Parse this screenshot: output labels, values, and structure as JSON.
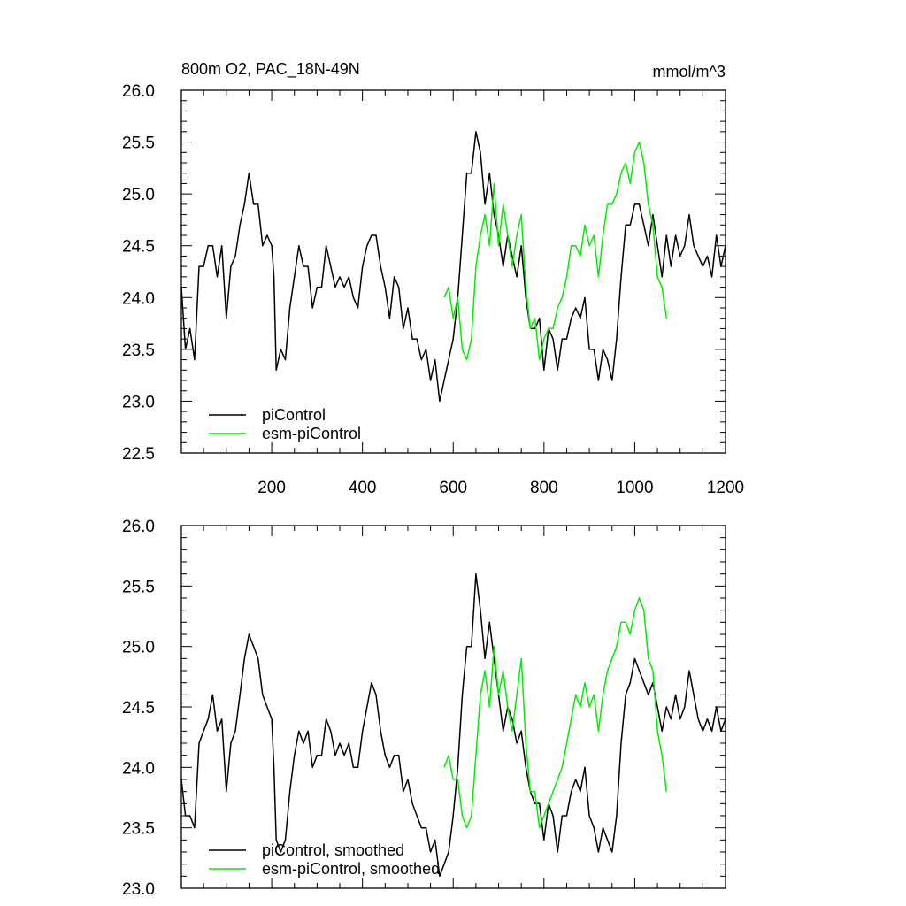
{
  "chart_data": [
    {
      "type": "line",
      "title": "800m O2, PAC_18N-49N",
      "units": "mmol/m^3",
      "xlim": [
        1,
        1200
      ],
      "ylim": [
        22.5,
        26.0
      ],
      "x_ticks": [
        200,
        400,
        600,
        800,
        1000,
        1200
      ],
      "x_ticklabels": [
        "200",
        "400",
        "600",
        "800",
        "1000",
        "1200"
      ],
      "y_ticks": [
        22.5,
        23.0,
        23.5,
        24.0,
        24.5,
        25.0,
        25.5,
        26.0
      ],
      "y_ticklabels": [
        "22.5",
        "23.0",
        "23.5",
        "24.0",
        "24.5",
        "25.0",
        "25.5",
        "26.0"
      ],
      "legend_position": "bottom-left",
      "grid": false,
      "series": [
        {
          "name": "piControl",
          "color": "#000000",
          "x": [
            1,
            10,
            20,
            30,
            40,
            50,
            60,
            70,
            80,
            90,
            100,
            110,
            120,
            130,
            140,
            150,
            160,
            170,
            180,
            190,
            200,
            205,
            210,
            220,
            230,
            240,
            250,
            260,
            270,
            280,
            290,
            300,
            310,
            320,
            330,
            340,
            350,
            360,
            370,
            380,
            390,
            400,
            410,
            420,
            430,
            440,
            450,
            460,
            470,
            480,
            490,
            500,
            510,
            520,
            530,
            540,
            550,
            560,
            570,
            580,
            590,
            600,
            610,
            620,
            630,
            640,
            650,
            660,
            670,
            680,
            690,
            700,
            710,
            720,
            730,
            740,
            750,
            760,
            770,
            780,
            790,
            800,
            810,
            820,
            830,
            840,
            850,
            860,
            870,
            880,
            890,
            900,
            910,
            920,
            930,
            940,
            950,
            960,
            970,
            980,
            990,
            1000,
            1010,
            1020,
            1030,
            1040,
            1050,
            1060,
            1070,
            1080,
            1090,
            1100,
            1110,
            1120,
            1130,
            1140,
            1150,
            1160,
            1170,
            1180,
            1190,
            1200
          ],
          "y": [
            24.1,
            23.5,
            23.7,
            23.4,
            24.3,
            24.3,
            24.5,
            24.5,
            24.2,
            24.5,
            23.8,
            24.3,
            24.4,
            24.7,
            24.9,
            25.2,
            24.9,
            24.9,
            24.5,
            24.6,
            24.5,
            24.2,
            23.3,
            23.5,
            23.4,
            23.9,
            24.2,
            24.5,
            24.3,
            24.3,
            23.9,
            24.1,
            24.1,
            24.5,
            24.3,
            24.1,
            24.2,
            24.1,
            24.2,
            24.0,
            23.9,
            24.3,
            24.5,
            24.6,
            24.6,
            24.3,
            24.1,
            23.8,
            24.2,
            24.1,
            23.7,
            23.9,
            23.6,
            23.6,
            23.4,
            23.5,
            23.2,
            23.4,
            23.0,
            23.2,
            23.4,
            23.6,
            24.0,
            24.6,
            25.2,
            25.2,
            25.6,
            25.4,
            24.9,
            25.2,
            24.8,
            24.6,
            24.3,
            24.6,
            24.4,
            24.2,
            24.5,
            24.0,
            23.7,
            23.7,
            23.8,
            23.3,
            23.7,
            23.6,
            23.3,
            23.6,
            23.6,
            23.8,
            23.9,
            23.8,
            24.0,
            23.5,
            23.5,
            23.2,
            23.5,
            23.4,
            23.2,
            23.6,
            24.2,
            24.7,
            24.7,
            24.9,
            24.9,
            24.7,
            24.5,
            24.8,
            24.5,
            24.2,
            24.6,
            24.3,
            24.6,
            24.4,
            24.5,
            24.8,
            24.5,
            24.4,
            24.3,
            24.4,
            24.2,
            24.6,
            24.3,
            24.5
          ]
        },
        {
          "name": "esm-piControl",
          "color": "#00ee00",
          "x": [
            580,
            590,
            600,
            610,
            620,
            630,
            640,
            650,
            660,
            670,
            680,
            690,
            700,
            710,
            720,
            730,
            740,
            750,
            760,
            770,
            780,
            790,
            800,
            810,
            820,
            830,
            840,
            850,
            860,
            870,
            880,
            890,
            900,
            910,
            920,
            930,
            940,
            950,
            960,
            970,
            980,
            990,
            1000,
            1010,
            1020,
            1030,
            1040,
            1050,
            1060,
            1070
          ],
          "y": [
            24.0,
            24.1,
            23.8,
            24.0,
            23.5,
            23.4,
            23.6,
            24.3,
            24.6,
            24.8,
            24.5,
            25.1,
            24.5,
            24.9,
            24.6,
            24.3,
            24.6,
            24.8,
            24.1,
            23.7,
            23.8,
            23.4,
            23.6,
            23.7,
            23.7,
            23.9,
            24.0,
            24.2,
            24.5,
            24.5,
            24.4,
            24.7,
            24.5,
            24.6,
            24.2,
            24.6,
            24.9,
            24.9,
            25.0,
            25.2,
            25.3,
            25.1,
            25.4,
            25.5,
            25.3,
            24.9,
            24.7,
            24.2,
            24.1,
            23.8
          ]
        }
      ]
    },
    {
      "type": "line",
      "title": "",
      "xlim": [
        1,
        1200
      ],
      "ylim": [
        23.0,
        26.0
      ],
      "x_ticks": [
        200,
        400,
        600,
        800,
        1000,
        1200
      ],
      "y_ticks": [
        23.0,
        23.5,
        24.0,
        24.5,
        25.0,
        25.5,
        26.0
      ],
      "y_ticklabels": [
        "23.0",
        "23.5",
        "24.0",
        "24.5",
        "25.0",
        "25.5",
        "26.0"
      ],
      "legend_position": "bottom-left",
      "grid": false,
      "series": [
        {
          "name": "piControl, smoothed",
          "color": "#000000",
          "x": [
            1,
            10,
            20,
            30,
            40,
            50,
            60,
            70,
            80,
            90,
            100,
            110,
            120,
            130,
            140,
            150,
            160,
            170,
            180,
            190,
            200,
            205,
            210,
            220,
            230,
            240,
            250,
            260,
            270,
            280,
            290,
            300,
            310,
            320,
            330,
            340,
            350,
            360,
            370,
            380,
            390,
            400,
            410,
            420,
            430,
            440,
            450,
            460,
            470,
            480,
            490,
            500,
            510,
            520,
            530,
            540,
            550,
            560,
            570,
            580,
            590,
            600,
            610,
            620,
            630,
            640,
            650,
            660,
            670,
            680,
            690,
            700,
            710,
            720,
            730,
            740,
            750,
            760,
            770,
            780,
            790,
            800,
            810,
            820,
            830,
            840,
            850,
            860,
            870,
            880,
            890,
            900,
            910,
            920,
            930,
            940,
            950,
            960,
            970,
            980,
            990,
            1000,
            1010,
            1020,
            1030,
            1040,
            1050,
            1060,
            1070,
            1080,
            1090,
            1100,
            1110,
            1120,
            1130,
            1140,
            1150,
            1160,
            1170,
            1180,
            1190,
            1200
          ],
          "y": [
            23.9,
            23.6,
            23.6,
            23.5,
            24.2,
            24.3,
            24.4,
            24.6,
            24.3,
            24.4,
            23.8,
            24.2,
            24.3,
            24.6,
            24.9,
            25.1,
            25.0,
            24.9,
            24.6,
            24.5,
            24.4,
            24.0,
            23.4,
            23.3,
            23.4,
            23.8,
            24.1,
            24.3,
            24.2,
            24.3,
            24.0,
            24.1,
            24.1,
            24.4,
            24.3,
            24.1,
            24.2,
            24.1,
            24.2,
            24.0,
            24.0,
            24.3,
            24.5,
            24.7,
            24.6,
            24.3,
            24.1,
            24.0,
            24.1,
            24.1,
            23.8,
            23.9,
            23.7,
            23.6,
            23.5,
            23.5,
            23.3,
            23.4,
            23.1,
            23.2,
            23.3,
            23.6,
            24.0,
            24.6,
            25.0,
            25.0,
            25.6,
            25.3,
            24.9,
            25.2,
            24.9,
            24.6,
            24.3,
            24.5,
            24.4,
            24.2,
            24.3,
            24.0,
            23.8,
            23.7,
            23.7,
            23.4,
            23.7,
            23.6,
            23.3,
            23.6,
            23.6,
            23.8,
            23.9,
            23.8,
            24.0,
            23.6,
            23.5,
            23.3,
            23.5,
            23.4,
            23.3,
            23.6,
            24.2,
            24.6,
            24.7,
            24.9,
            24.8,
            24.7,
            24.6,
            24.7,
            24.5,
            24.3,
            24.5,
            24.4,
            24.6,
            24.4,
            24.5,
            24.8,
            24.6,
            24.4,
            24.3,
            24.4,
            24.3,
            24.5,
            24.3,
            24.4
          ]
        },
        {
          "name": "esm-piControl, smoothed",
          "color": "#00ee00",
          "x": [
            580,
            590,
            600,
            610,
            620,
            630,
            640,
            650,
            660,
            670,
            680,
            690,
            700,
            710,
            720,
            730,
            740,
            750,
            760,
            770,
            780,
            790,
            800,
            810,
            820,
            830,
            840,
            850,
            860,
            870,
            880,
            890,
            900,
            910,
            920,
            930,
            940,
            950,
            960,
            970,
            980,
            990,
            1000,
            1010,
            1020,
            1030,
            1040,
            1050,
            1060,
            1070
          ],
          "y": [
            24.0,
            24.1,
            23.9,
            23.9,
            23.6,
            23.5,
            23.6,
            24.1,
            24.6,
            24.8,
            24.5,
            25.0,
            24.6,
            24.8,
            24.5,
            24.3,
            24.6,
            24.9,
            24.2,
            23.8,
            23.8,
            23.5,
            23.6,
            23.7,
            23.8,
            23.9,
            24.0,
            24.2,
            24.4,
            24.6,
            24.5,
            24.7,
            24.5,
            24.6,
            24.3,
            24.6,
            24.8,
            24.9,
            25.0,
            25.2,
            25.2,
            25.1,
            25.3,
            25.4,
            25.3,
            24.9,
            24.8,
            24.3,
            24.1,
            23.8
          ]
        }
      ]
    }
  ]
}
